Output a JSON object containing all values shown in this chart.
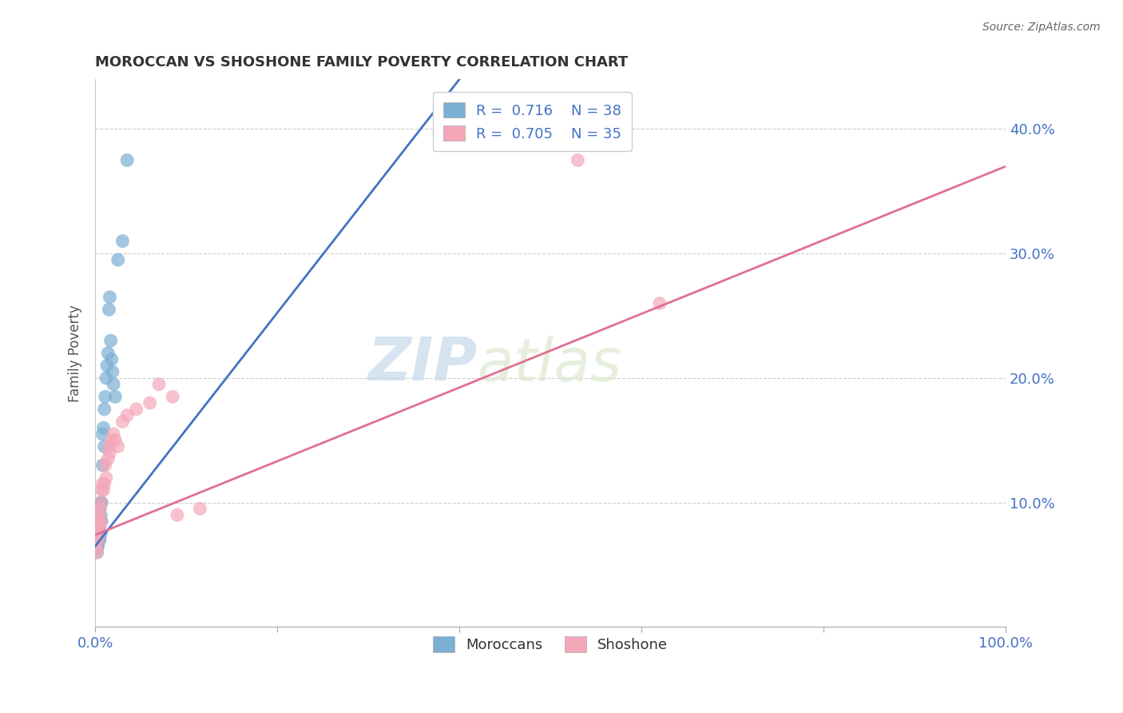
{
  "title": "MOROCCAN VS SHOSHONE FAMILY POVERTY CORRELATION CHART",
  "source": "Source: ZipAtlas.com",
  "xlabel": "",
  "ylabel": "Family Poverty",
  "xlim": [
    0,
    1.0
  ],
  "ylim": [
    0.0,
    0.44
  ],
  "xtick_positions": [
    0.0,
    0.2,
    0.4,
    0.6,
    0.8,
    1.0
  ],
  "xticklabels": [
    "0.0%",
    "",
    "",
    "",
    "",
    "100.0%"
  ],
  "ytick_positions": [
    0.0,
    0.1,
    0.2,
    0.3,
    0.4
  ],
  "ytick_labels_right": [
    "",
    "10.0%",
    "20.0%",
    "30.0%",
    "40.0%"
  ],
  "moroccan_color": "#7bafd4",
  "shoshone_color": "#f4a7b9",
  "moroccan_line_color": "#4472c4",
  "shoshone_line_color": "#e07090",
  "R_moroccan": 0.716,
  "N_moroccan": 38,
  "R_shoshone": 0.705,
  "N_shoshone": 35,
  "legend_moroccan_label": "Moroccans",
  "legend_shoshone_label": "Shoshone",
  "watermark_zip": "ZIP",
  "watermark_atlas": "atlas",
  "moroccan_x": [
    0.001,
    0.001,
    0.002,
    0.002,
    0.002,
    0.003,
    0.003,
    0.003,
    0.004,
    0.004,
    0.004,
    0.005,
    0.005,
    0.005,
    0.006,
    0.006,
    0.006,
    0.007,
    0.007,
    0.008,
    0.008,
    0.009,
    0.01,
    0.01,
    0.011,
    0.012,
    0.013,
    0.014,
    0.015,
    0.016,
    0.017,
    0.018,
    0.019,
    0.02,
    0.022,
    0.025,
    0.03,
    0.035
  ],
  "moroccan_y": [
    0.085,
    0.075,
    0.07,
    0.065,
    0.06,
    0.09,
    0.08,
    0.065,
    0.095,
    0.08,
    0.07,
    0.095,
    0.085,
    0.07,
    0.1,
    0.09,
    0.075,
    0.1,
    0.085,
    0.155,
    0.13,
    0.16,
    0.175,
    0.145,
    0.185,
    0.2,
    0.21,
    0.22,
    0.255,
    0.265,
    0.23,
    0.215,
    0.205,
    0.195,
    0.185,
    0.295,
    0.31,
    0.375
  ],
  "shoshone_x": [
    0.001,
    0.001,
    0.002,
    0.002,
    0.003,
    0.003,
    0.004,
    0.004,
    0.005,
    0.005,
    0.006,
    0.006,
    0.007,
    0.008,
    0.009,
    0.01,
    0.011,
    0.012,
    0.014,
    0.015,
    0.016,
    0.018,
    0.02,
    0.022,
    0.025,
    0.03,
    0.035,
    0.045,
    0.06,
    0.07,
    0.085,
    0.09,
    0.115,
    0.53,
    0.62
  ],
  "shoshone_y": [
    0.08,
    0.065,
    0.075,
    0.06,
    0.085,
    0.07,
    0.09,
    0.075,
    0.095,
    0.08,
    0.1,
    0.085,
    0.11,
    0.115,
    0.11,
    0.115,
    0.13,
    0.12,
    0.135,
    0.145,
    0.14,
    0.15,
    0.155,
    0.15,
    0.145,
    0.165,
    0.17,
    0.175,
    0.18,
    0.195,
    0.185,
    0.09,
    0.095,
    0.375,
    0.26
  ],
  "moroccan_line_x": [
    0.0,
    0.4
  ],
  "moroccan_line_y": [
    0.065,
    0.44
  ],
  "shoshone_line_x": [
    0.0,
    1.0
  ],
  "shoshone_line_y": [
    0.074,
    0.37
  ]
}
